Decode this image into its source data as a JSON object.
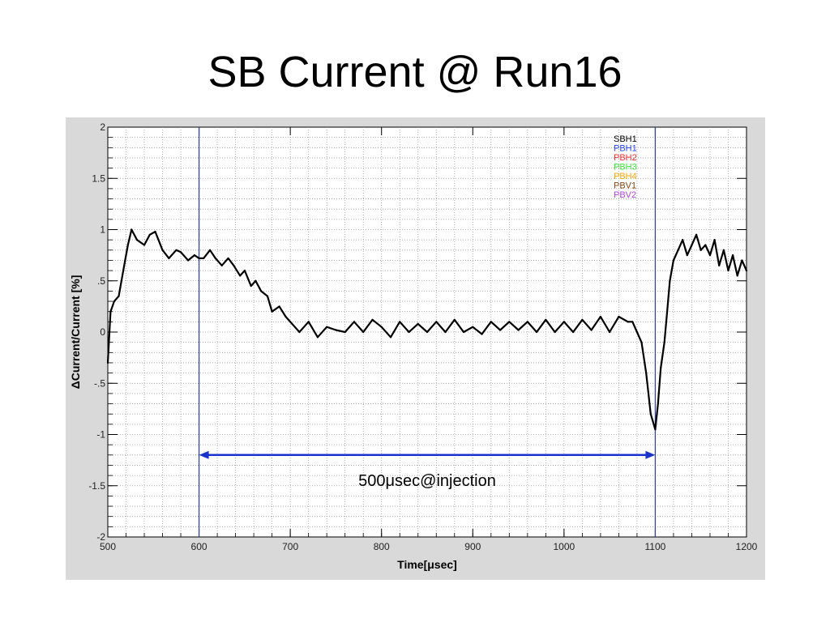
{
  "slide": {
    "title": "SB Current @ Run16"
  },
  "chart_data": {
    "type": "line",
    "xlabel": "Time[μsec]",
    "ylabel": "ΔCurrent/Current [%]",
    "xlim": [
      500,
      1200
    ],
    "ylim": [
      -2,
      2
    ],
    "x_ticks": [
      500,
      600,
      700,
      800,
      900,
      1000,
      1100,
      1200
    ],
    "x_tick_labels": [
      "500",
      "600",
      "700",
      "800",
      "900",
      "1000",
      "1100",
      "1200"
    ],
    "y_ticks": [
      2,
      1.5,
      1,
      0.5,
      0,
      -0.5,
      -1,
      -1.5,
      -2
    ],
    "y_tick_labels": [
      "2",
      "1.5",
      "1",
      ".5",
      "0",
      "-.5",
      "-1",
      "-1.5",
      "-2"
    ],
    "grid": true,
    "legend_position": "top-right",
    "legend": [
      {
        "name": "SBH1",
        "color": "#000000"
      },
      {
        "name": "PBH1",
        "color": "#1f3fff"
      },
      {
        "name": "PBH2",
        "color": "#ff2a2a"
      },
      {
        "name": "PBH3",
        "color": "#33ee33"
      },
      {
        "name": "PBH4",
        "color": "#ffa500"
      },
      {
        "name": "PBV1",
        "color": "#8b4513"
      },
      {
        "name": "PBV2",
        "color": "#b040e0"
      }
    ],
    "series": [
      {
        "name": "SBH1",
        "color": "#000000",
        "x": [
          500,
          503,
          507,
          512,
          517,
          522,
          526,
          532,
          540,
          546,
          552,
          560,
          567,
          575,
          580,
          588,
          595,
          600,
          605,
          612,
          618,
          625,
          632,
          638,
          645,
          650,
          657,
          662,
          668,
          675,
          680,
          688,
          695,
          700,
          710,
          720,
          730,
          740,
          750,
          760,
          770,
          780,
          790,
          800,
          810,
          820,
          830,
          840,
          850,
          860,
          870,
          880,
          890,
          900,
          910,
          920,
          930,
          940,
          950,
          960,
          970,
          980,
          990,
          1000,
          1010,
          1020,
          1030,
          1040,
          1050,
          1060,
          1070,
          1075,
          1080,
          1085,
          1090,
          1095,
          1100,
          1103,
          1106,
          1110,
          1113,
          1116,
          1120,
          1125,
          1130,
          1135,
          1140,
          1145,
          1150,
          1155,
          1160,
          1165,
          1170,
          1175,
          1180,
          1185,
          1190,
          1195,
          1200
        ],
        "y": [
          -0.3,
          0.2,
          0.3,
          0.35,
          0.6,
          0.85,
          1.0,
          0.9,
          0.85,
          0.95,
          0.98,
          0.8,
          0.72,
          0.8,
          0.78,
          0.7,
          0.75,
          0.72,
          0.72,
          0.8,
          0.72,
          0.65,
          0.72,
          0.65,
          0.55,
          0.6,
          0.45,
          0.5,
          0.4,
          0.35,
          0.2,
          0.25,
          0.15,
          0.1,
          0.0,
          0.1,
          -0.05,
          0.05,
          0.02,
          0.0,
          0.1,
          0.0,
          0.12,
          0.05,
          -0.05,
          0.1,
          0.0,
          0.08,
          0.0,
          0.1,
          0.0,
          0.12,
          0.0,
          0.05,
          -0.02,
          0.1,
          0.02,
          0.1,
          0.02,
          0.1,
          0.0,
          0.12,
          0.0,
          0.1,
          0.0,
          0.12,
          0.02,
          0.15,
          0.0,
          0.15,
          0.1,
          0.1,
          0.0,
          -0.1,
          -0.4,
          -0.8,
          -0.95,
          -0.7,
          -0.35,
          -0.1,
          0.2,
          0.5,
          0.7,
          0.8,
          0.9,
          0.75,
          0.85,
          0.95,
          0.8,
          0.85,
          0.75,
          0.9,
          0.65,
          0.8,
          0.6,
          0.75,
          0.55,
          0.7,
          0.6
        ]
      }
    ],
    "vertical_lines": [
      {
        "x": 600,
        "color": "#3344aa"
      },
      {
        "x": 1100,
        "color": "#3344aa"
      }
    ],
    "annotation": {
      "text": "500μsec@injection",
      "x_start": 600,
      "x_end": 1100,
      "y": -1.2,
      "color": "#1a33cc"
    }
  }
}
